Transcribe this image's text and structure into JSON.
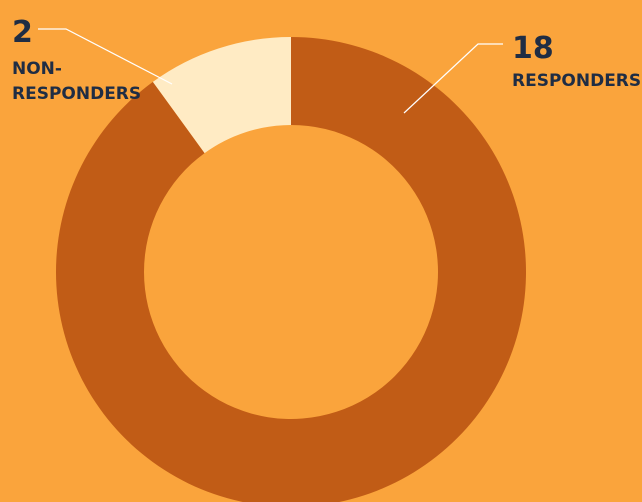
{
  "chart_data": {
    "type": "pie",
    "variant": "donut",
    "title": "",
    "slices": [
      {
        "label_lines": [
          "RESPONDERS"
        ],
        "value": 18,
        "display": "18",
        "color": "#C15C16"
      },
      {
        "label_lines": [
          "NON-",
          "RESPONDERS"
        ],
        "value": 2,
        "display": "2",
        "color": "#FFEBC4"
      }
    ]
  },
  "colors": {
    "background": "#FAA43C",
    "text": "#1F2D44",
    "leader_line": "#FFFFFF"
  }
}
